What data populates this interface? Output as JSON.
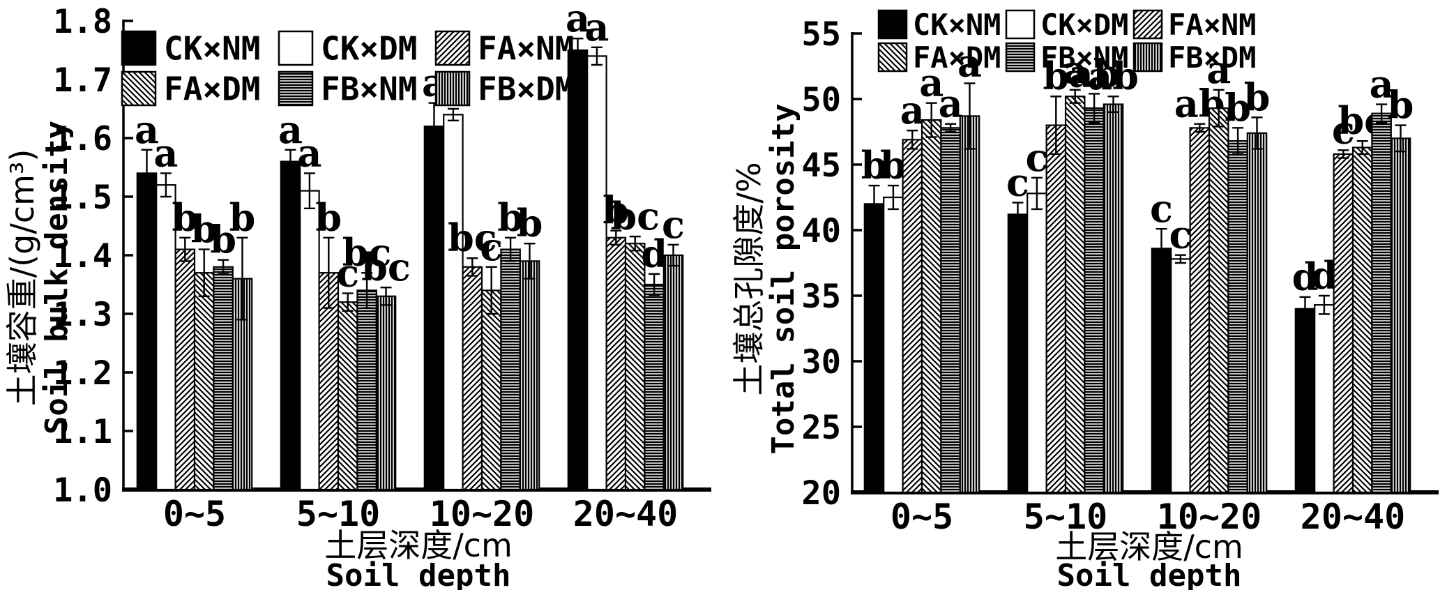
{
  "figure": {
    "background": "#ffffff",
    "ink": "#000000",
    "description_left": "Soil bulk density by soil depth",
    "description_right": "Total soil porosity by soil depth"
  },
  "chart_data": [
    {
      "type": "bar",
      "panel": "left",
      "ylabel_cn": "土壤容重/(g/cm³)",
      "ylabel_en": "Soil bulk density",
      "xlabel_cn": "土层深度/cm",
      "xlabel_en": "Soil depth",
      "categories": [
        "0~5",
        "5~10",
        "10~20",
        "20~40"
      ],
      "ylim": [
        1.0,
        1.8
      ],
      "ytick_step": 0.1,
      "ytick_decimals": 1,
      "grid": false,
      "legend_position": "top-inside",
      "error_bars": true,
      "series": [
        {
          "name": "CK×NM",
          "pattern": "solid",
          "values": [
            1.54,
            1.56,
            1.62,
            1.75
          ],
          "errors": [
            0.04,
            0.02,
            0.04,
            0.02
          ],
          "letters": [
            "a",
            "a",
            "a",
            "a"
          ]
        },
        {
          "name": "CK×DM",
          "pattern": "open",
          "values": [
            1.52,
            1.51,
            1.64,
            1.74
          ],
          "errors": [
            0.02,
            0.03,
            0.01,
            0.015
          ],
          "letters": [
            "a",
            "a",
            "a",
            "a"
          ]
        },
        {
          "name": "FA×NM",
          "pattern": "diag-up",
          "values": [
            1.41,
            1.37,
            1.38,
            1.43
          ],
          "errors": [
            0.02,
            0.06,
            0.015,
            0.012
          ],
          "letters": [
            "b",
            "b",
            "bc",
            "b"
          ]
        },
        {
          "name": "FA×DM",
          "pattern": "diag-down",
          "values": [
            1.37,
            1.32,
            1.34,
            1.42
          ],
          "errors": [
            0.04,
            0.015,
            0.04,
            0.012
          ],
          "letters": [
            "b",
            "c",
            "c",
            "bc"
          ]
        },
        {
          "name": "FB×NM",
          "pattern": "horizontal",
          "values": [
            1.38,
            1.34,
            1.41,
            1.35
          ],
          "errors": [
            0.012,
            0.03,
            0.02,
            0.018
          ],
          "letters": [
            "b",
            "bc",
            "b",
            "d"
          ]
        },
        {
          "name": "FB×DM",
          "pattern": "vertical",
          "values": [
            1.36,
            1.33,
            1.39,
            1.4
          ],
          "errors": [
            0.07,
            0.015,
            0.03,
            0.018
          ],
          "letters": [
            "b",
            "bc",
            "b",
            "c"
          ]
        }
      ]
    },
    {
      "type": "bar",
      "panel": "right",
      "ylabel_cn": "土壤总孔隙度/%",
      "ylabel_en": "Total soil porosity",
      "xlabel_cn": "土层深度/cm",
      "xlabel_en": "Soil depth",
      "categories": [
        "0~5",
        "5~10",
        "10~20",
        "20~40"
      ],
      "ylim": [
        20,
        55
      ],
      "ytick_step": 5,
      "ytick_decimals": 0,
      "grid": false,
      "legend_position": "top-inside",
      "error_bars": true,
      "series": [
        {
          "name": "CK×NM",
          "pattern": "solid",
          "values": [
            42.0,
            41.2,
            38.6,
            34.0
          ],
          "errors": [
            1.4,
            0.9,
            1.5,
            0.9
          ],
          "letters": [
            "b",
            "c",
            "c",
            "d"
          ]
        },
        {
          "name": "CK×DM",
          "pattern": "open",
          "values": [
            42.5,
            42.8,
            37.8,
            34.3
          ],
          "errors": [
            0.9,
            1.2,
            0.3,
            0.7
          ],
          "letters": [
            "b",
            "c",
            "c",
            "d"
          ]
        },
        {
          "name": "FA×NM",
          "pattern": "diag-up",
          "values": [
            46.9,
            48.0,
            47.8,
            45.8
          ],
          "errors": [
            0.7,
            2.2,
            0.3,
            0.3
          ],
          "letters": [
            "a",
            "b",
            "ab",
            "c"
          ]
        },
        {
          "name": "FA×DM",
          "pattern": "diag-down",
          "values": [
            48.4,
            50.2,
            49.3,
            46.3
          ],
          "errors": [
            1.3,
            0.5,
            1.4,
            0.5
          ],
          "letters": [
            "a",
            "a",
            "a",
            "bc"
          ]
        },
        {
          "name": "FB×NM",
          "pattern": "horizontal",
          "values": [
            47.8,
            49.3,
            46.8,
            48.9
          ],
          "errors": [
            0.3,
            1.1,
            1.0,
            0.7
          ],
          "letters": [
            "a",
            "ab",
            "b",
            "a"
          ]
        },
        {
          "name": "FB×DM",
          "pattern": "vertical",
          "values": [
            48.7,
            49.6,
            47.4,
            47.0
          ],
          "errors": [
            2.5,
            0.6,
            1.2,
            1.0
          ],
          "letters": [
            "a",
            "ab",
            "b",
            "b"
          ]
        }
      ]
    }
  ]
}
